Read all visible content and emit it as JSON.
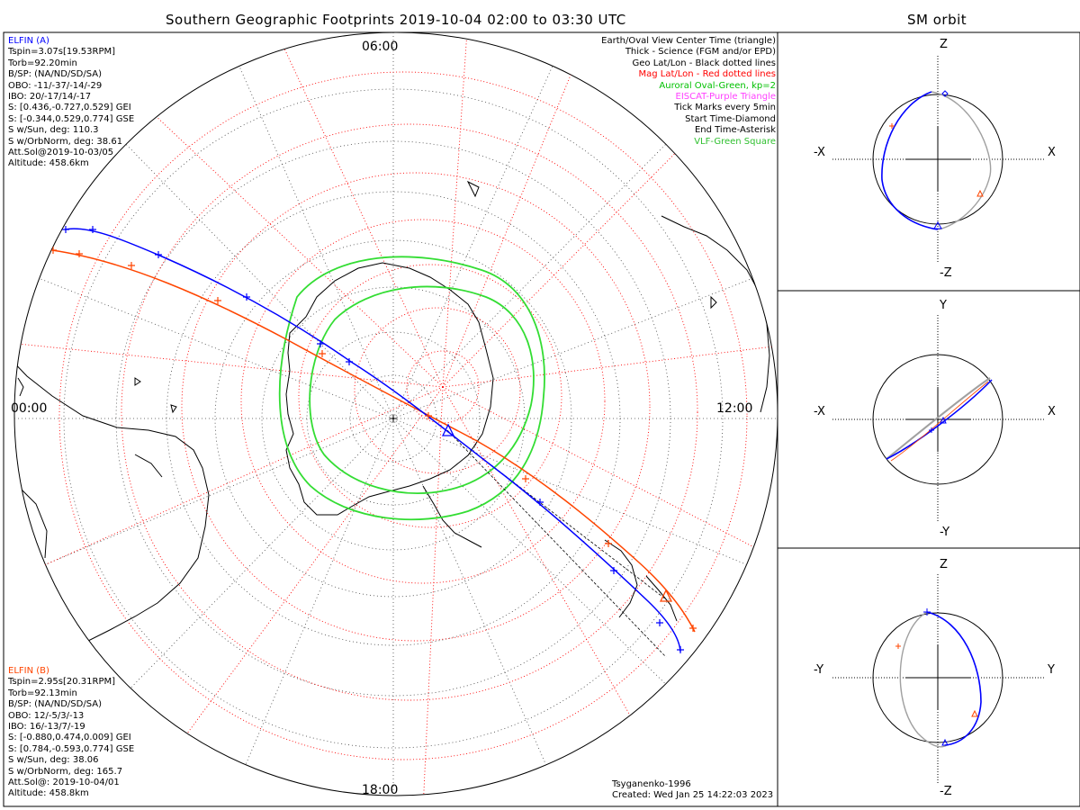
{
  "main_title": "Southern Geographic Footprints 2019-10-04 02:00 to 03:30 UTC",
  "side_title": "SM orbit",
  "elfin_a": {
    "name": "ELFIN (A)",
    "lines": [
      "Tspin=3.07s[19.53RPM]",
      "Torb=92.20min",
      "B/SP: (NA/ND/SD/SA)",
      "OBO: -11/-37/-14/-29",
      "IBO: 20/-17/14/-17",
      "S: [0.436,-0.727,0.529] GEI",
      "S: [-0.344,0.529,0.774] GSE",
      "S w/Sun, deg: 110.3",
      "S w/OrbNorm, deg: 38.61",
      "Att.Sol@2019-10-03/05",
      "Altitude: 458.6km"
    ],
    "color": "#0000ff"
  },
  "elfin_b": {
    "name": "ELFIN (B)",
    "lines": [
      "Tspin=2.95s[20.31RPM]",
      "Torb=92.13min",
      "B/SP: (NA/ND/SD/SA)",
      "OBO: 12/-5/3/-13",
      "IBO: 16/-13/7/-19",
      "S: [-0.880,0.474,0.009] GEI",
      "S: [0.784,-0.593,0.774] GSE",
      "S w/Sun, deg: 38.06",
      "S w/OrbNorm, deg: 165.7",
      "Att.Sol@: 2019-10-04/01",
      "Altitude: 458.8km"
    ],
    "color": "#ff4500"
  },
  "legend": [
    {
      "text": "Earth/Oval View Center Time (triangle)",
      "color": "#000000"
    },
    {
      "text": "Thick - Science (FGM and/or EPD)",
      "color": "#000000"
    },
    {
      "text": "Geo Lat/Lon - Black dotted lines",
      "color": "#000000"
    },
    {
      "text": "Mag Lat/Lon - Red dotted lines",
      "color": "#ff0000"
    },
    {
      "text": "Auroral Oval-Green, kp=2",
      "color": "#00c000"
    },
    {
      "text": "EISCAT-Purple Triangle",
      "color": "#ff40ff"
    },
    {
      "text": "Tick Marks every 5min",
      "color": "#000000"
    },
    {
      "text": "Start Time-Diamond",
      "color": "#000000"
    },
    {
      "text": "End Time-Asterisk",
      "color": "#000000"
    },
    {
      "text": "VLF-Green Square",
      "color": "#30c030"
    }
  ],
  "hour_labels": {
    "top": "06:00",
    "left": "00:00",
    "right": "12:00",
    "bottom": "18:00"
  },
  "credit": {
    "line1": "Tsyganenko-1996",
    "line2": "Created: Wed Jan 25 14:22:03 2023"
  },
  "panels": [
    {
      "top": "Z",
      "bottom": "-Z",
      "left": "-X",
      "right": "X"
    },
    {
      "top": "Y",
      "bottom": "-Y",
      "left": "-X",
      "right": "X"
    },
    {
      "top": "Z",
      "bottom": "-Z",
      "left": "-Y",
      "right": "Y"
    }
  ],
  "colors": {
    "blue_track": "#0000ff",
    "red_track": "#ff4500",
    "oval": "#33dd33",
    "grid_red": "#ff0000",
    "projection": "#a0a0a0"
  }
}
